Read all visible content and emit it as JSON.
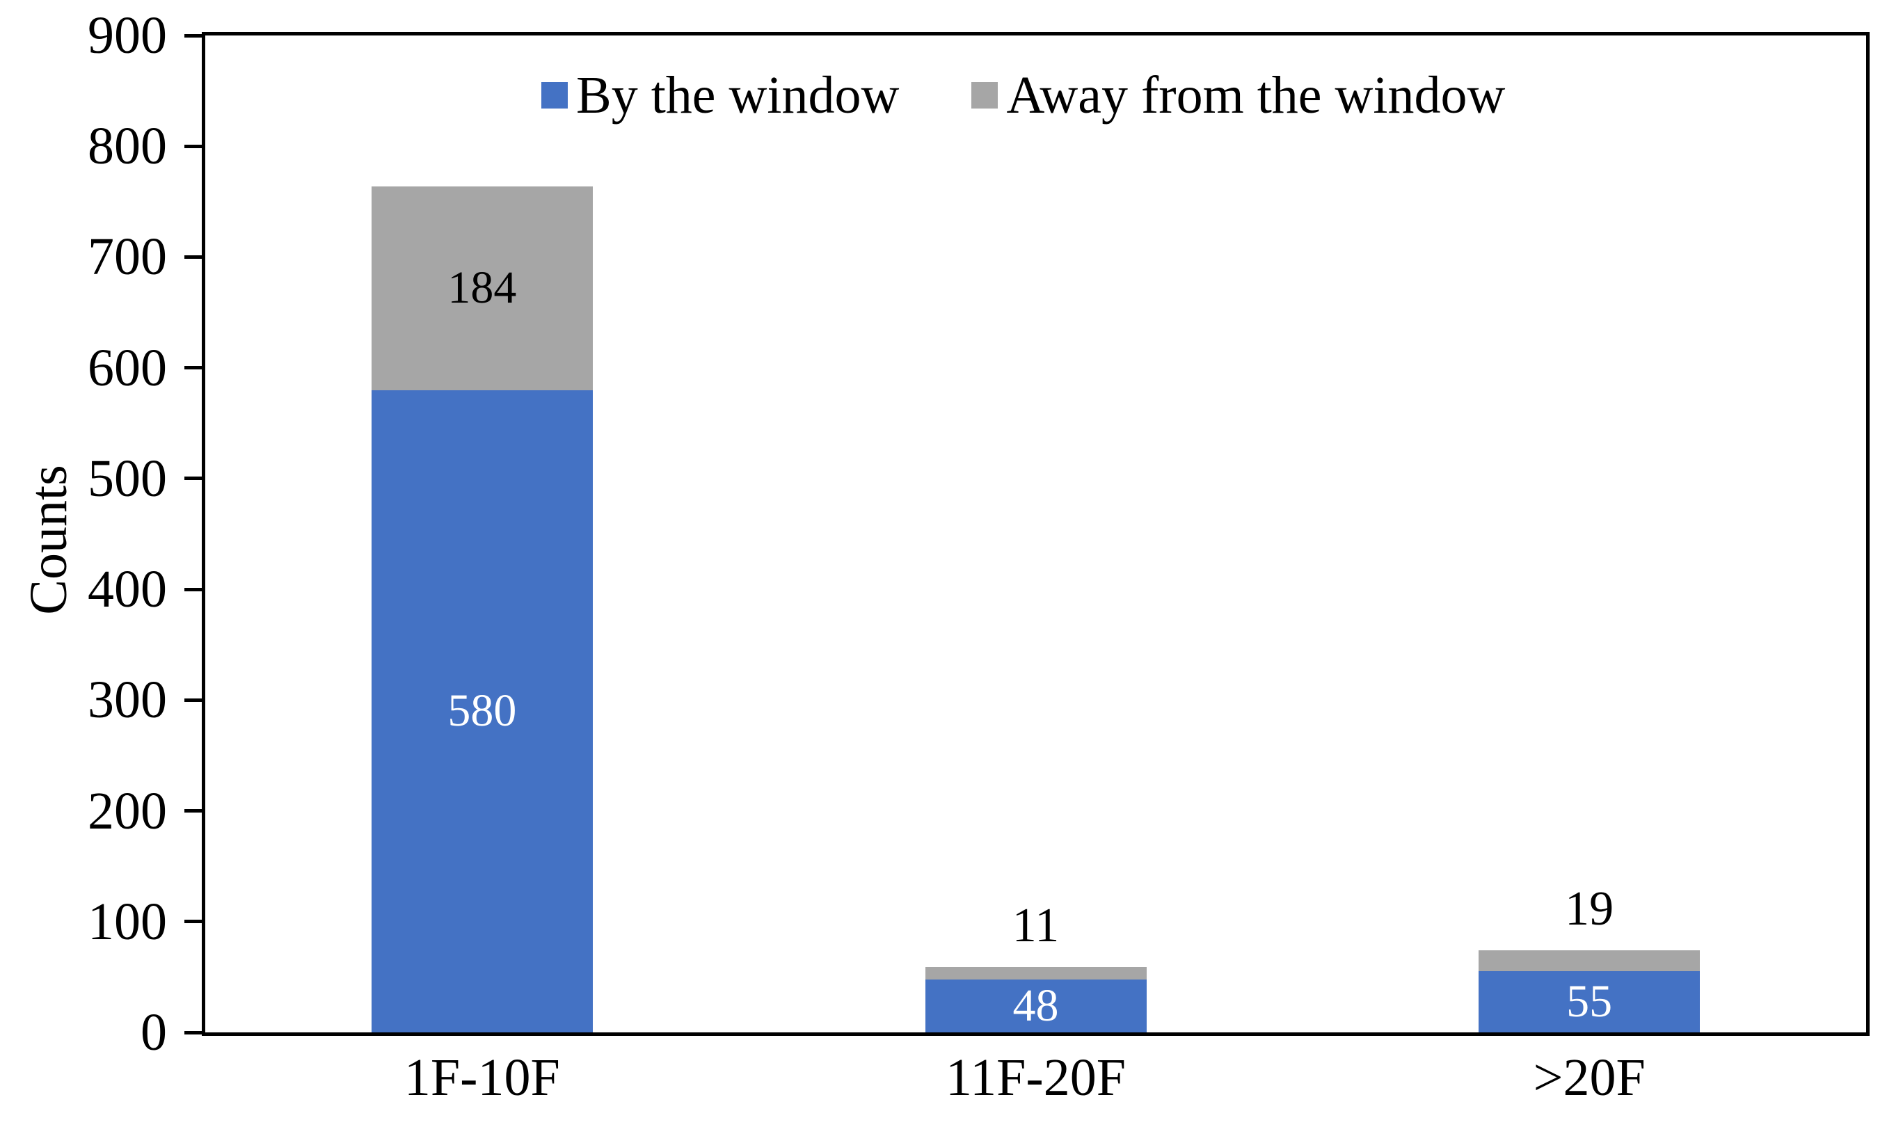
{
  "chart_data": {
    "type": "bar",
    "subtype": "stacked",
    "title": "",
    "categories": [
      "1F-10F",
      "11F-20F",
      ">20F"
    ],
    "series": [
      {
        "name": "By the window",
        "color": "#4472C4",
        "label_color": "#ffffff",
        "values": [
          580,
          48,
          55
        ],
        "label_placement": [
          "inside",
          "inside",
          "inside"
        ]
      },
      {
        "name": "Away from the window",
        "color": "#A6A6A6",
        "label_color": "#000000",
        "values": [
          184,
          11,
          19
        ],
        "label_placement": [
          "inside",
          "above",
          "above"
        ]
      }
    ],
    "xlabel": "",
    "ylabel": "Counts",
    "ylim": [
      0,
      900
    ],
    "yticks": [
      0,
      100,
      200,
      300,
      400,
      500,
      600,
      700,
      800,
      900
    ],
    "grid": false,
    "plot_border": true,
    "axis_color": "#000000",
    "background_color": "#ffffff",
    "legend_position": "top-center"
  }
}
